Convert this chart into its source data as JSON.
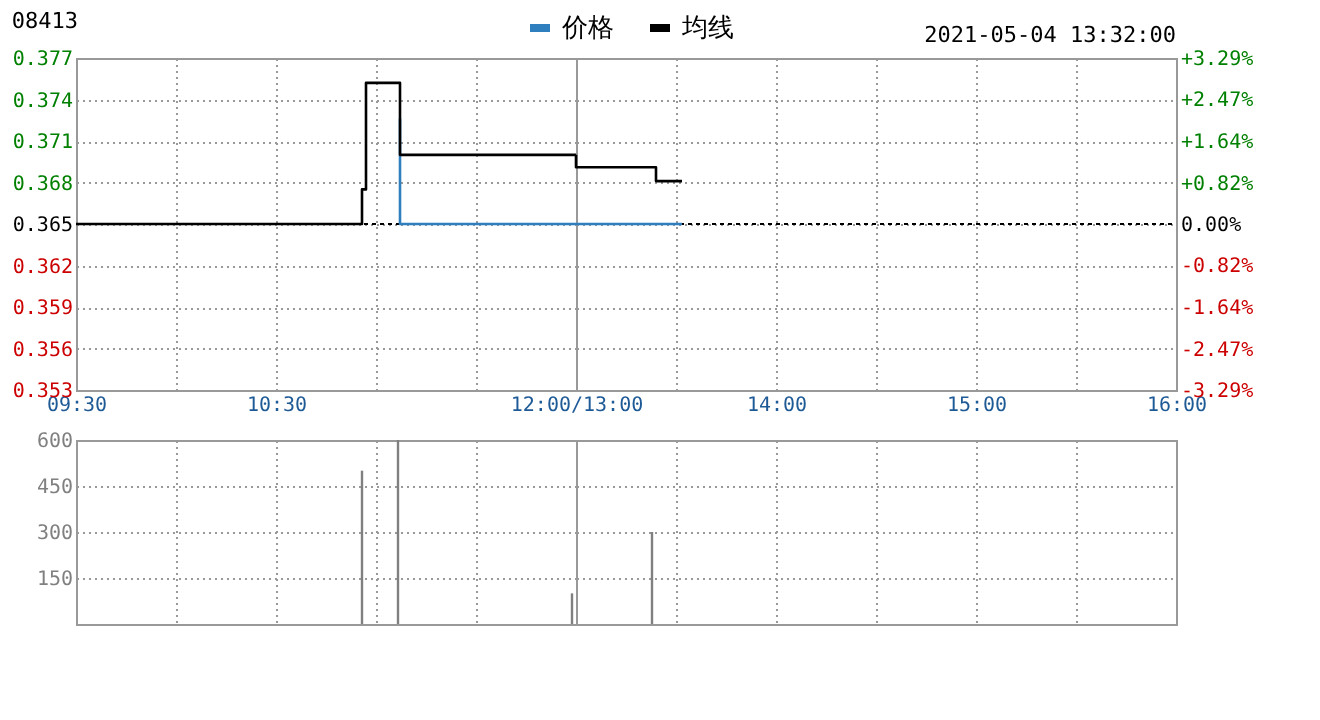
{
  "chart_data": [
    {
      "type": "line",
      "title": "08413",
      "xlim": [
        9.5,
        12
      ],
      "xticks": [
        {
          "value": 9.5,
          "label": "09:30"
        },
        {
          "value": 10,
          "label": null
        },
        {
          "value": 10.5,
          "label": "10:30"
        },
        {
          "value": 11,
          "label": null
        },
        {
          "value": 11.5,
          "label": null
        },
        {
          "value": 12,
          "label": "12:00/13:00"
        }
      ],
      "ylim": [
        0.353,
        0.377
      ],
      "yticks": [
        0.353,
        0.356,
        0.359,
        0.362,
        0.365,
        0.368,
        0.371,
        0.374,
        0.377
      ],
      "grid": true,
      "legend": "top",
      "ref_lines": [
        {
          "axis": "y",
          "value": 0.365,
          "color": "#000000",
          "line_style": "dotted"
        }
      ],
      "series": [
        {
          "name": "价格",
          "color": "#2f7fbf",
          "x": [
            11.12,
            11.12,
            12
          ],
          "values": [
            0.3726,
            0.365,
            0.365
          ]
        },
        {
          "name": "均线",
          "color": "#000000",
          "x": [
            9.5,
            10.93,
            10.93,
            10.95,
            10.95,
            11.12,
            11.12,
            12
          ],
          "values": [
            0.365,
            0.365,
            0.3675,
            0.3675,
            0.3752,
            0.3752,
            0.37,
            0.37
          ]
        }
      ]
    },
    {
      "type": "line",
      "annotations": [
        "2021-05-04 13:32:00"
      ],
      "xlim": [
        13,
        16
      ],
      "xticks": [
        {
          "value": 13,
          "label": null
        },
        {
          "value": 13.5,
          "label": null
        },
        {
          "value": 14,
          "label": "14:00"
        },
        {
          "value": 14.5,
          "label": null
        },
        {
          "value": 15,
          "label": "15:00"
        },
        {
          "value": 15.5,
          "label": null
        },
        {
          "value": 16,
          "label": "16:00"
        }
      ],
      "ylim": [
        0.353,
        0.377
      ],
      "yticks": [
        0.353,
        0.356,
        0.359,
        0.362,
        0.365,
        0.368,
        0.371,
        0.374,
        0.377
      ],
      "y2lim": [
        -3.29,
        3.29
      ],
      "y2ticks": [
        {
          "value": -3.29,
          "label": "-3.29%"
        },
        {
          "value": -2.47,
          "label": "-2.47%"
        },
        {
          "value": -1.64,
          "label": "-1.64%"
        },
        {
          "value": -0.82,
          "label": "-0.82%"
        },
        {
          "value": 0,
          "label": "0.00%"
        },
        {
          "value": 0.82,
          "label": "+0.82%"
        },
        {
          "value": 1.64,
          "label": "+1.64%"
        },
        {
          "value": 2.47,
          "label": "+2.47%"
        },
        {
          "value": 3.29,
          "label": "+3.29%"
        }
      ],
      "grid": true,
      "tick_labels": "x",
      "ref_lines": [
        {
          "axis": "y",
          "value": 0.365,
          "color": "#000000",
          "line_style": "dotted"
        }
      ],
      "series": [
        {
          "name": "价格",
          "color": "#2f7fbf",
          "x": [
            13,
            13.53
          ],
          "values": [
            0.365,
            0.365
          ]
        },
        {
          "name": "均线",
          "color": "#000000",
          "x": [
            13,
            13,
            13.4,
            13.4,
            13.53
          ],
          "values": [
            0.37,
            0.3691,
            0.3691,
            0.3681,
            0.3681
          ]
        }
      ]
    },
    {
      "type": "bar",
      "color": "#808080",
      "x": [
        10.93,
        11.11,
        11.98
      ],
      "values": [
        500,
        600,
        100
      ],
      "xlim": [
        9.5,
        12
      ],
      "xticks": [
        9.5,
        10,
        10.5,
        11,
        11.5,
        12
      ],
      "ylim": [
        0,
        600
      ],
      "yticks": [
        {
          "value": 0,
          "label": null
        },
        150,
        300,
        450,
        600
      ],
      "grid": true,
      "tick_labels": "y"
    },
    {
      "type": "bar",
      "color": "#808080",
      "x": [
        13.38
      ],
      "values": [
        300
      ],
      "xlim": [
        13,
        16
      ],
      "xticks": [
        13,
        13.5,
        14,
        14.5,
        15,
        15.5,
        16
      ],
      "ylim": [
        0,
        600
      ],
      "yticks": [
        {
          "value": 0,
          "label": null
        },
        150,
        300,
        450,
        600
      ],
      "grid": true,
      "tick_labels": false
    }
  ]
}
